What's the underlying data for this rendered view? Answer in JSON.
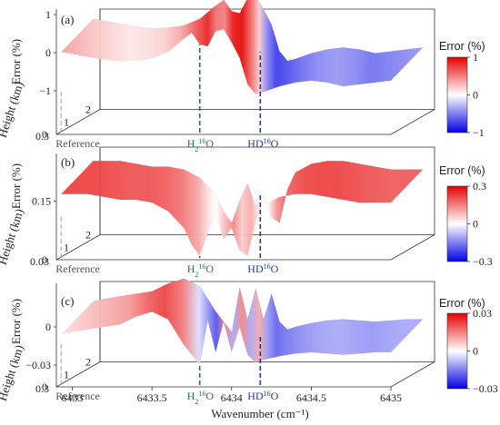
{
  "colors": {
    "positive": "#e60000",
    "neutral": "#ffffff",
    "negative": "#0000e6",
    "reference_line": "#b0b0b0",
    "h2o_line": "#1e7a3c",
    "hdo_line": "#1f3f8a"
  },
  "chart_data": [
    {
      "type": "surface",
      "panel_label": "(a)",
      "zlabel": "Error (%)",
      "ylabel": "Height (km)",
      "x_ticks": [],
      "y_ticks": [
        "0",
        "1",
        "2"
      ],
      "y_max_label": "0.3",
      "z_ticks": [
        "1",
        "0",
        "−1"
      ],
      "zlim": [
        -1,
        1
      ],
      "colorbar": {
        "title": "Error (%)",
        "ticks": [
          "1",
          "0",
          "−1"
        ],
        "range": [
          -1,
          1
        ]
      },
      "markers": [
        {
          "label": "Reference",
          "x": 6432.93
        },
        {
          "label": "H",
          "sub": "2",
          "sup": "16",
          "tail": "O",
          "x": 6433.8
        },
        {
          "label": "HD",
          "sup": "16",
          "tail": "O",
          "x": 6434.18
        }
      ],
      "profile_x": [
        6432.93,
        6433.0,
        6433.1,
        6433.2,
        6433.3,
        6433.4,
        6433.5,
        6433.6,
        6433.7,
        6433.75,
        6433.8,
        6433.85,
        6433.9,
        6433.95,
        6434.0,
        6434.05,
        6434.1,
        6434.15,
        6434.2,
        6434.3,
        6434.4,
        6434.5,
        6434.6,
        6434.7,
        6434.8,
        6434.9,
        6435.0
      ],
      "profile_z": [
        0.35,
        0.3,
        0.22,
        0.15,
        0.1,
        0.12,
        0.18,
        0.35,
        0.7,
        0.85,
        0.55,
        0.5,
        0.9,
        0.95,
        0.6,
        0.2,
        -0.5,
        -0.75,
        -0.7,
        -0.55,
        -0.45,
        -0.4,
        -0.45,
        -0.55,
        -0.5,
        -0.45,
        -0.4
      ]
    },
    {
      "type": "surface",
      "panel_label": "(b)",
      "zlabel": "Error (%)",
      "ylabel": "Height (km)",
      "x_ticks": [],
      "y_ticks": [
        "0",
        "1",
        "2"
      ],
      "y_max_label": "0.03",
      "z_ticks": [
        "0.15"
      ],
      "zlim": [
        0,
        0.3
      ],
      "colorbar": {
        "title": "Error (%)",
        "ticks": [
          "0.3",
          "0",
          "−0.3"
        ],
        "range": [
          -0.3,
          0.3
        ]
      },
      "markers": [
        {
          "label": "Reference",
          "x": 6432.93
        },
        {
          "label": "H",
          "sub": "2",
          "sup": "16",
          "tail": "O",
          "x": 6433.8
        },
        {
          "label": "HD",
          "sup": "16",
          "tail": "O",
          "x": 6434.18
        }
      ],
      "profile_x": [
        6432.93,
        6433.0,
        6433.1,
        6433.2,
        6433.3,
        6433.4,
        6433.5,
        6433.6,
        6433.7,
        6433.75,
        6433.8,
        6433.85,
        6433.9,
        6433.95,
        6434.0,
        6434.05,
        6434.1,
        6434.15,
        6434.2,
        6434.3,
        6434.4,
        6434.5,
        6434.6,
        6434.7,
        6434.8,
        6434.9,
        6435.0
      ],
      "profile_z": [
        0.22,
        0.22,
        0.22,
        0.21,
        0.2,
        0.2,
        0.19,
        0.16,
        0.1,
        0.04,
        0.0,
        0.08,
        0.14,
        0.06,
        0.1,
        0.02,
        0.0,
        0.12,
        0.18,
        0.21,
        0.22,
        0.22,
        0.21,
        0.2,
        0.19,
        0.19,
        0.19
      ]
    },
    {
      "type": "surface",
      "panel_label": "(c)",
      "zlabel": "Error (%)",
      "ylabel": "Height (km)",
      "xlabel": "Wavenumber (cm⁻¹)",
      "x_ticks": [
        "6433",
        "6433.5",
        "6434",
        "6434.5",
        "6435"
      ],
      "x_tick_values": [
        6433,
        6433.5,
        6434,
        6434.5,
        6435
      ],
      "y_ticks": [
        "0",
        "1",
        "2"
      ],
      "y_max_label": "0.3",
      "z_ticks": [
        "0",
        "−0.03"
      ],
      "zlim": [
        -0.03,
        0.03
      ],
      "colorbar": {
        "title": "Error (%)",
        "ticks": [
          "0.03",
          "0",
          "−0.03"
        ],
        "range": [
          -0.03,
          0.03
        ]
      },
      "markers": [
        {
          "label": "Reference",
          "x": 6432.93
        },
        {
          "label": "H",
          "sub": "2",
          "sup": "16",
          "tail": "O",
          "x": 6433.8
        },
        {
          "label": "HD",
          "sup": "16",
          "tail": "O",
          "x": 6434.18
        }
      ],
      "profile_x": [
        6432.93,
        6433.0,
        6433.1,
        6433.2,
        6433.3,
        6433.4,
        6433.5,
        6433.6,
        6433.7,
        6433.75,
        6433.8,
        6433.85,
        6433.9,
        6433.95,
        6434.0,
        6434.05,
        6434.1,
        6434.15,
        6434.2,
        6434.3,
        6434.4,
        6434.5,
        6434.6,
        6434.7,
        6434.8,
        6434.9,
        6435.0
      ],
      "profile_z": [
        0.004,
        0.006,
        0.008,
        0.01,
        0.012,
        0.018,
        0.022,
        0.016,
        -0.004,
        -0.012,
        -0.02,
        0.015,
        -0.01,
        0.014,
        -0.01,
        0.01,
        -0.012,
        -0.018,
        -0.016,
        -0.013,
        -0.011,
        -0.01,
        -0.011,
        -0.012,
        -0.011,
        -0.01,
        -0.01
      ]
    }
  ]
}
